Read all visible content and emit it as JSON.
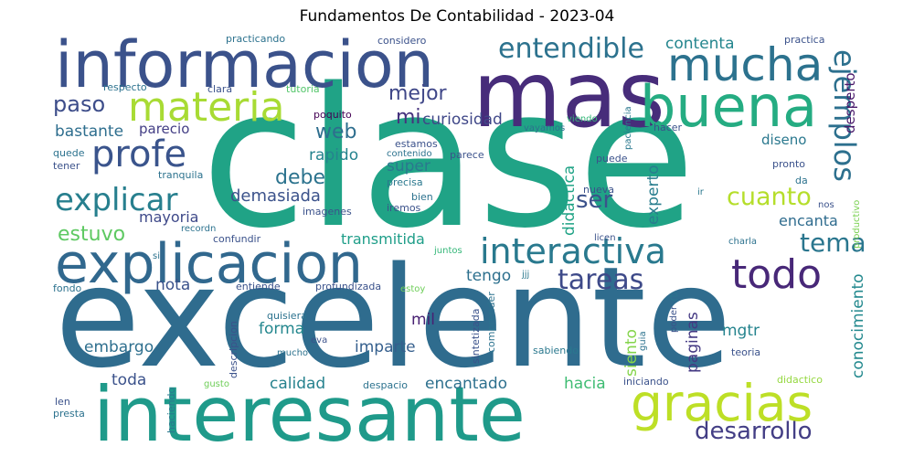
{
  "title": "Fundamentos  De Contabilidad - 2023-04",
  "words": [
    {
      "text": "clase",
      "color": "#20a386"
    },
    {
      "text": "excelente",
      "color": "#2f6c8e"
    },
    {
      "text": "interesante",
      "color": "#1f9a8a"
    },
    {
      "text": "informacion",
      "color": "#3b528b"
    },
    {
      "text": "mas",
      "color": "#472c7a"
    },
    {
      "text": "explicacion",
      "color": "#31688e"
    },
    {
      "text": "buena",
      "color": "#25ac82"
    },
    {
      "text": "mucha",
      "color": "#2c728e"
    },
    {
      "text": "gracias",
      "color": "#bddf26"
    },
    {
      "text": "materia",
      "color": "#a8db34"
    },
    {
      "text": "profe",
      "color": "#3a548c"
    },
    {
      "text": "interactiva",
      "color": "#29798e"
    },
    {
      "text": "todo",
      "color": "#482878"
    },
    {
      "text": "explicar",
      "color": "#277f8e"
    },
    {
      "text": "entendible",
      "color": "#2c728e"
    },
    {
      "text": "ejemplos",
      "color": "#2d708e"
    },
    {
      "text": "tareas",
      "color": "#3e4a89"
    },
    {
      "text": "tema",
      "color": "#2a768e"
    },
    {
      "text": "desarrollo",
      "color": "#433e85"
    },
    {
      "text": "cuanto",
      "color": "#b5de2b"
    },
    {
      "text": "debe",
      "color": "#2c738e"
    },
    {
      "text": "paso",
      "color": "#3d4d8a"
    },
    {
      "text": "mejor",
      "color": "#3f4788"
    },
    {
      "text": "web",
      "color": "#2e6e8e"
    },
    {
      "text": "ser",
      "color": "#3b528b"
    },
    {
      "text": "estuvo",
      "color": "#5ec962"
    },
    {
      "text": "contenta",
      "color": "#24868e"
    },
    {
      "text": "mi",
      "color": "#46337e"
    },
    {
      "text": "curiosidad",
      "color": "#3f4788"
    },
    {
      "text": "bastante",
      "color": "#2e6e8e"
    },
    {
      "text": "parecio",
      "color": "#433e85"
    },
    {
      "text": "rapido",
      "color": "#25838e"
    },
    {
      "text": "super",
      "color": "#2a788e"
    },
    {
      "text": "demasiada",
      "color": "#3b528b"
    },
    {
      "text": "mayoria",
      "color": "#3e4989"
    },
    {
      "text": "transmitida",
      "color": "#1f9e89"
    },
    {
      "text": "encanta",
      "color": "#2f6c8e"
    },
    {
      "text": "didactica",
      "color": "#20a386"
    },
    {
      "text": "experto",
      "color": "#287d8e"
    },
    {
      "text": "conocimiento",
      "color": "#23898e"
    },
    {
      "text": "tengo",
      "color": "#2d708e"
    },
    {
      "text": "nota",
      "color": "#3b528b"
    },
    {
      "text": "forma",
      "color": "#24878e"
    },
    {
      "text": "mil",
      "color": "#482173"
    },
    {
      "text": "imparte",
      "color": "#355f8d"
    },
    {
      "text": "embargo",
      "color": "#2e6f8e"
    },
    {
      "text": "toda",
      "color": "#3b528b"
    },
    {
      "text": "calidad",
      "color": "#26828e"
    },
    {
      "text": "encantado",
      "color": "#2d708e"
    },
    {
      "text": "hacia",
      "color": "#3fbc73"
    },
    {
      "text": "paginas",
      "color": "#443983"
    },
    {
      "text": "mgtr",
      "color": "#25848e"
    },
    {
      "text": "siento",
      "color": "#84d44b"
    },
    {
      "text": "e",
      "color": "#2c728e"
    },
    {
      "text": "diseno",
      "color": "#2a788e"
    },
    {
      "text": "desperto",
      "color": "#48186a"
    },
    {
      "text": "practicando",
      "color": "#2c728e"
    },
    {
      "text": "considero",
      "color": "#3b528b"
    },
    {
      "text": "practica",
      "color": "#3b528b"
    },
    {
      "text": "productivo",
      "color": "#7ad151"
    },
    {
      "text": "respecto",
      "color": "#2c728e"
    },
    {
      "text": "clara",
      "color": "#3b528b"
    },
    {
      "text": "tutoria",
      "color": "#52c569"
    },
    {
      "text": "poquito",
      "color": "#440154"
    },
    {
      "text": "viendo",
      "color": "#35b779"
    },
    {
      "text": "paciencia",
      "color": "#2a788e"
    },
    {
      "text": "hacer",
      "color": "#3b528b"
    },
    {
      "text": "vayamos",
      "color": "#2c728e"
    },
    {
      "text": "estamos",
      "color": "#3b528b"
    },
    {
      "text": "contenido",
      "color": "#2c728e"
    },
    {
      "text": "parece",
      "color": "#3b528b"
    },
    {
      "text": "puede",
      "color": "#3b528b"
    },
    {
      "text": "pronto",
      "color": "#3b528b"
    },
    {
      "text": "quede",
      "color": "#2c728e"
    },
    {
      "text": "tener",
      "color": "#3b528b"
    },
    {
      "text": "tranquila",
      "color": "#2c728e"
    },
    {
      "text": "precisa",
      "color": "#2a788e"
    },
    {
      "text": "bien",
      "color": "#2c728e"
    },
    {
      "text": "iremos",
      "color": "#3b528b"
    },
    {
      "text": "nueva",
      "color": "#3b528b"
    },
    {
      "text": "da",
      "color": "#2c728e"
    },
    {
      "text": "ir",
      "color": "#2a788e"
    },
    {
      "text": "nos",
      "color": "#3b528b"
    },
    {
      "text": "recordn",
      "color": "#2c728e"
    },
    {
      "text": "imagenes",
      "color": "#3b528b"
    },
    {
      "text": "confundir",
      "color": "#3b528b"
    },
    {
      "text": "juntos",
      "color": "#35b779"
    },
    {
      "text": "licen",
      "color": "#3b528b"
    },
    {
      "text": "charla",
      "color": "#2c728e"
    },
    {
      "text": "si",
      "color": "#2c728e"
    },
    {
      "text": "jjj",
      "color": "#2a788e"
    },
    {
      "text": "fondo",
      "color": "#2c728e"
    },
    {
      "text": "entiende",
      "color": "#3b528b"
    },
    {
      "text": "profundizada",
      "color": "#3b528b"
    },
    {
      "text": "estoy",
      "color": "#6ece58"
    },
    {
      "text": "sintetizada",
      "color": "#3b528b"
    },
    {
      "text": "comprender",
      "color": "#2c728e"
    },
    {
      "text": "poder",
      "color": "#3b528b"
    },
    {
      "text": "guia",
      "color": "#2c728e"
    },
    {
      "text": "quisiera",
      "color": "#2c728e"
    },
    {
      "text": "descripcion",
      "color": "#3b528b"
    },
    {
      "text": "eva",
      "color": "#3b528b"
    },
    {
      "text": "mucho",
      "color": "#2c728e"
    },
    {
      "text": "sabiendo",
      "color": "#2a788e"
    },
    {
      "text": "teoria",
      "color": "#3b528b"
    },
    {
      "text": "gusto",
      "color": "#6ece58"
    },
    {
      "text": "despacio",
      "color": "#2c728e"
    },
    {
      "text": "iniciando",
      "color": "#3b528b"
    },
    {
      "text": "didactico",
      "color": "#95d840"
    },
    {
      "text": "len",
      "color": "#3b528b"
    },
    {
      "text": "presta",
      "color": "#2c728e"
    },
    {
      "text": "haciendo",
      "color": "#2a788e"
    }
  ]
}
